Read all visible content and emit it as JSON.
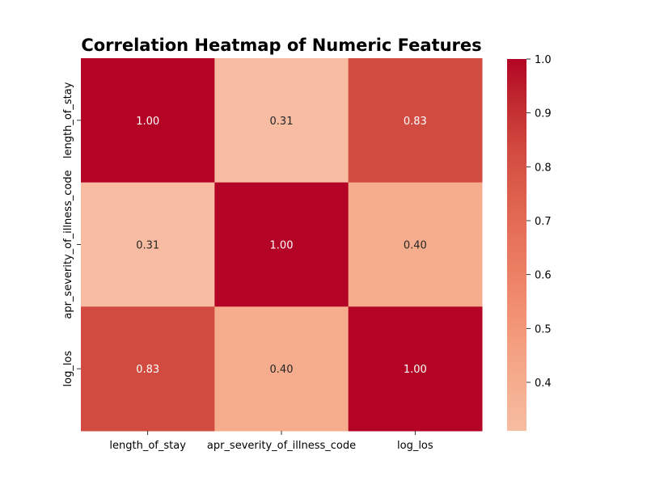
{
  "chart_data": {
    "type": "heatmap",
    "title": "Correlation Heatmap of Numeric Features",
    "x_labels": [
      "length_of_stay",
      "apr_severity_of_illness_code",
      "log_los"
    ],
    "y_labels": [
      "length_of_stay",
      "apr_severity_of_illness_code",
      "log_los"
    ],
    "values": [
      [
        1.0,
        0.31,
        0.83
      ],
      [
        0.31,
        1.0,
        0.4
      ],
      [
        0.83,
        0.4,
        1.0
      ]
    ],
    "value_labels": [
      [
        "1.00",
        "0.31",
        "0.83"
      ],
      [
        "0.31",
        "1.00",
        "0.40"
      ],
      [
        "0.83",
        "0.40",
        "1.00"
      ]
    ],
    "colorbar": {
      "range": [
        0.31,
        1.0
      ],
      "ticks": [
        0.4,
        0.5,
        0.6,
        0.7,
        0.8,
        0.9,
        1.0
      ],
      "tick_labels": [
        "0.4",
        "0.5",
        "0.6",
        "0.7",
        "0.8",
        "0.9",
        "1.0"
      ],
      "colormap": "coolwarm",
      "low_color": "#f7bca1",
      "high_color": "#b40426"
    },
    "cell_colors": {
      "1.00": "#b40426",
      "0.83": "#d24b40",
      "0.40": "#f5ad8e",
      "0.31": "#f7bca1"
    }
  }
}
